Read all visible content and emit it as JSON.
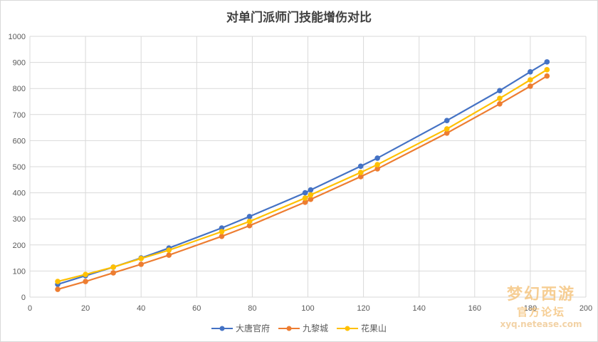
{
  "chart_data": {
    "type": "line",
    "title": "对单门派师门技能增伤对比",
    "xlabel": "",
    "ylabel": "",
    "xlim": [
      0,
      200
    ],
    "ylim": [
      0,
      1000
    ],
    "x_ticks": [
      0,
      20,
      40,
      60,
      80,
      100,
      120,
      140,
      160,
      180,
      200
    ],
    "y_ticks": [
      0,
      100,
      200,
      300,
      400,
      500,
      600,
      700,
      800,
      900,
      1000
    ],
    "grid": true,
    "legend_position": "bottom",
    "x": [
      10,
      20,
      30,
      40,
      50,
      69,
      79,
      99,
      101,
      119,
      125,
      150,
      169,
      180,
      186
    ],
    "series": [
      {
        "name": "大唐官府",
        "color": "#4472c4",
        "values": [
          49,
          82,
          115,
          150,
          188,
          265,
          309,
          400,
          411,
          502,
          533,
          677,
          792,
          864,
          902
        ]
      },
      {
        "name": "九黎城",
        "color": "#ed7d31",
        "values": [
          30,
          60,
          93,
          126,
          161,
          233,
          274,
          364,
          375,
          462,
          492,
          629,
          741,
          809,
          848
        ]
      },
      {
        "name": "花果山",
        "color": "#ffc000",
        "values": [
          60,
          87,
          115,
          148,
          180,
          251,
          290,
          380,
          392,
          478,
          508,
          645,
          762,
          833,
          872
        ]
      }
    ]
  },
  "watermark": {
    "name": "梦幻西游",
    "sub": "官方论坛",
    "url": "xyq.netease.com"
  }
}
